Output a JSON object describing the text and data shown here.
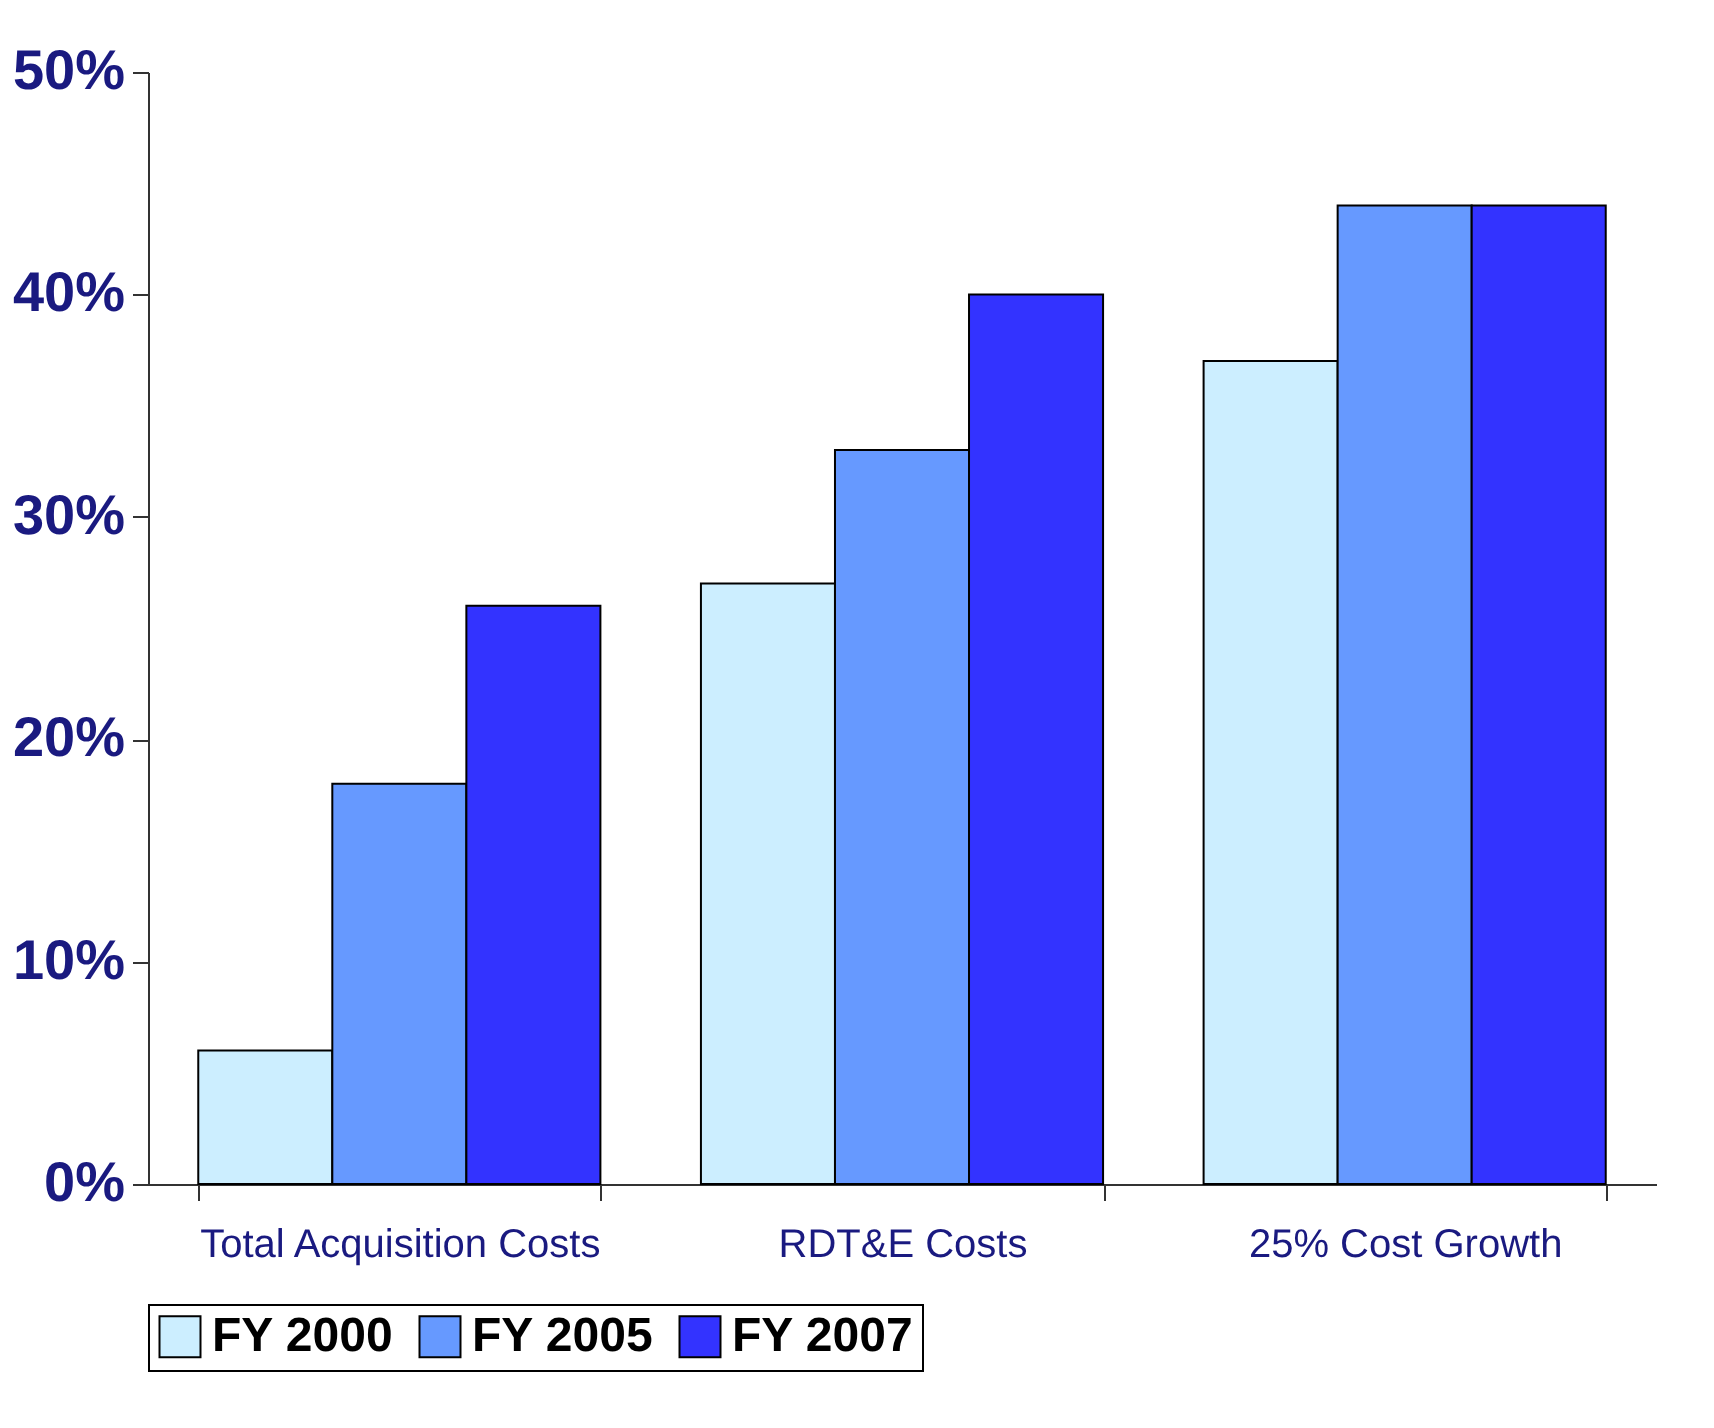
{
  "chart_data": {
    "type": "bar",
    "categories": [
      "Total Acquisition Costs",
      "RDT&E Costs",
      "25% Cost Growth"
    ],
    "series": [
      {
        "name": "FY 2000",
        "color": "#cceeff",
        "values": [
          6,
          27,
          37
        ]
      },
      {
        "name": "FY 2005",
        "color": "#6699ff",
        "values": [
          18,
          33,
          44
        ]
      },
      {
        "name": "FY 2007",
        "color": "#3333ff",
        "values": [
          26,
          40,
          44
        ]
      }
    ],
    "ylim": [
      0,
      50
    ],
    "yticks": [
      {
        "value": 0,
        "label": "0%"
      },
      {
        "value": 10,
        "label": "10%"
      },
      {
        "value": 20,
        "label": "20%"
      },
      {
        "value": 30,
        "label": "30%"
      },
      {
        "value": 40,
        "label": "40%"
      },
      {
        "value": 50,
        "label": "50%"
      }
    ],
    "grid": false,
    "legend": "bottom"
  }
}
